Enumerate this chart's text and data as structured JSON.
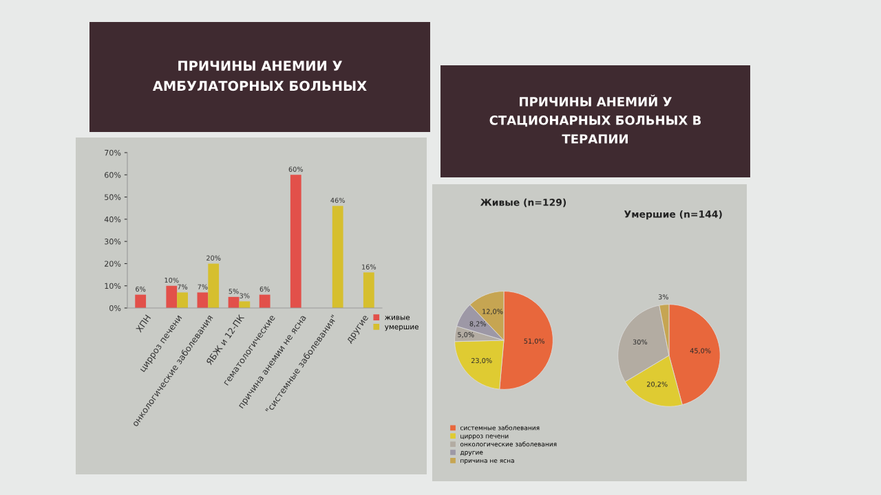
{
  "chart_data": [
    {
      "type": "bar",
      "title": "ПРИЧИНЫ АНЕМИИ У АМБУЛАТОРНЫХ БОЛЬНЫХ",
      "categories": [
        "ХПН",
        "цирроз печени",
        "онкологические заболевания",
        "ЯБЖ и 12-ПК",
        "гематологические",
        "причина анемии не ясна",
        "\"системные заболевания\"",
        "другие"
      ],
      "series": [
        {
          "name": "живые",
          "color": "#e2504a",
          "values": [
            6,
            10,
            7,
            5,
            6,
            60,
            null,
            null
          ],
          "value_labels": [
            "6%",
            "10%",
            "7%",
            "5%",
            "6%",
            "60%",
            null,
            null
          ]
        },
        {
          "name": "умершие",
          "color": "#d6bf2e",
          "values": [
            null,
            7,
            20,
            3,
            null,
            null,
            46,
            16
          ],
          "value_labels": [
            null,
            "7%",
            "20%",
            "3%",
            null,
            null,
            "46%",
            "16%"
          ]
        }
      ],
      "ylim": [
        0,
        70
      ],
      "yticks": [
        {
          "value": 0,
          "label": "0%"
        },
        {
          "value": 10,
          "label": "10%"
        },
        {
          "value": 20,
          "label": "20%"
        },
        {
          "value": 30,
          "label": "30%"
        },
        {
          "value": 40,
          "label": "40%"
        },
        {
          "value": 50,
          "label": "50%"
        },
        {
          "value": 60,
          "label": "60%"
        },
        {
          "value": 70,
          "label": "70%"
        }
      ],
      "legend": "bottom right"
    },
    {
      "type": "pie",
      "title": "ПРИЧИНЫ АНЕМИЙ У СТАЦИОНАРНЫХ БОЛЬНЫХ В ТЕРАПИИ",
      "subtitle": "Живые (n=129)",
      "categories": [
        "системные заболевания",
        "цирроз печени",
        "онкологические заболевания",
        "другие",
        "причина не ясна"
      ],
      "values": [
        51.0,
        23.0,
        5.0,
        8.2,
        12.0
      ],
      "value_labels": [
        "51,0%",
        "23,0%",
        "5,0%",
        "8,2%",
        "12,0%"
      ],
      "colors": [
        "#e8673c",
        "#dfcb32",
        "#b3aca2",
        "#9d98a6",
        "#c6a552"
      ],
      "legend": "bottom"
    },
    {
      "type": "pie",
      "subtitle": "Умершие (n=144)",
      "categories": [
        null,
        null,
        null,
        null,
        null
      ],
      "values": [
        45.0,
        20.2,
        30,
        null,
        3
      ],
      "value_labels": [
        "45,0%",
        "20,2%",
        "30%",
        null,
        "3%"
      ],
      "colors": [
        "#e8673c",
        "#dfcb32",
        "#b3aca2",
        "#9d98a6",
        "#c6a552"
      ]
    }
  ]
}
